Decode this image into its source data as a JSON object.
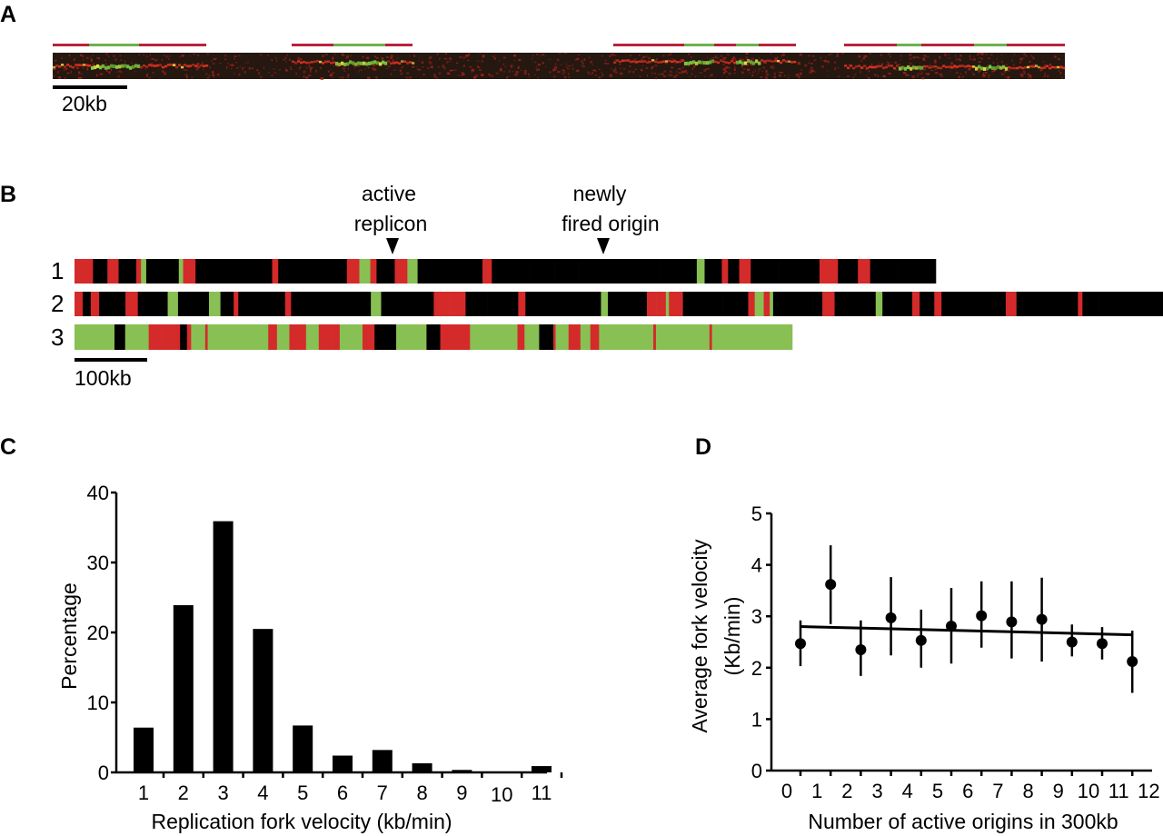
{
  "colors": {
    "red": "#d42a2a",
    "green": "#88c054",
    "black": "#000000",
    "fiber_bg": "#241810",
    "track_red": "#b8223a",
    "track_green": "#6cb14e"
  },
  "panel_a": {
    "label": "A",
    "scale_bar_label": "20kb",
    "annotation_groups": [
      [
        "red",
        "green",
        "red"
      ],
      [
        "red",
        "green",
        "red"
      ],
      [
        "red",
        "green",
        "red",
        "green",
        "red"
      ],
      [
        "red",
        "green",
        "red",
        "green",
        "red"
      ]
    ]
  },
  "panel_b": {
    "label": "B",
    "annotation_active": [
      "active",
      "replicon"
    ],
    "annotation_origin": [
      "newly",
      "fired origin"
    ],
    "row_labels": [
      "1",
      "2",
      "3"
    ],
    "scale_bar_label": "100kb"
  },
  "chart_data": [
    {
      "panel": "C",
      "type": "bar",
      "xlabel": "Replication fork velocity (kb/min)",
      "ylabel": "Percentage",
      "categories": [
        "1",
        "2",
        "3",
        "4",
        "5",
        "6",
        "7",
        "8",
        "9",
        "10",
        "11"
      ],
      "values": [
        6.4,
        23.9,
        35.9,
        20.5,
        6.7,
        2.4,
        3.2,
        1.3,
        0.35,
        0,
        0.9
      ],
      "ylim": [
        0,
        40
      ],
      "yticks": [
        "0",
        "10",
        "20",
        "30",
        "40"
      ],
      "grid": false
    },
    {
      "panel": "D",
      "type": "scatter",
      "xlabel": "Number of active origins in 300kb",
      "ylabel": [
        "Average fork velocity",
        "(Kb/min)"
      ],
      "xticks": [
        "0",
        "1",
        "2",
        "3",
        "4",
        "5",
        "6",
        "7",
        "8",
        "9",
        "10",
        "11",
        "12"
      ],
      "yticks": [
        "0",
        "1",
        "2",
        "3",
        "4",
        "5"
      ],
      "ylim": [
        0,
        5
      ],
      "x": [
        0,
        1,
        2,
        3,
        4,
        5,
        6,
        7,
        8,
        9,
        10,
        11
      ],
      "y": [
        2.47,
        3.62,
        2.35,
        2.97,
        2.53,
        2.81,
        3.01,
        2.89,
        2.94,
        2.5,
        2.47,
        2.12
      ],
      "error_upper": [
        2.92,
        4.38,
        2.92,
        3.76,
        3.13,
        3.55,
        3.68,
        3.68,
        3.75,
        2.84,
        2.79,
        2.72
      ],
      "error_lower": [
        2.03,
        2.85,
        1.84,
        2.24,
        2.0,
        2.08,
        2.39,
        2.18,
        2.12,
        2.22,
        2.16,
        1.51
      ],
      "trend_line": {
        "y_start": 2.8,
        "y_end": 2.64
      },
      "grid": false
    }
  ]
}
